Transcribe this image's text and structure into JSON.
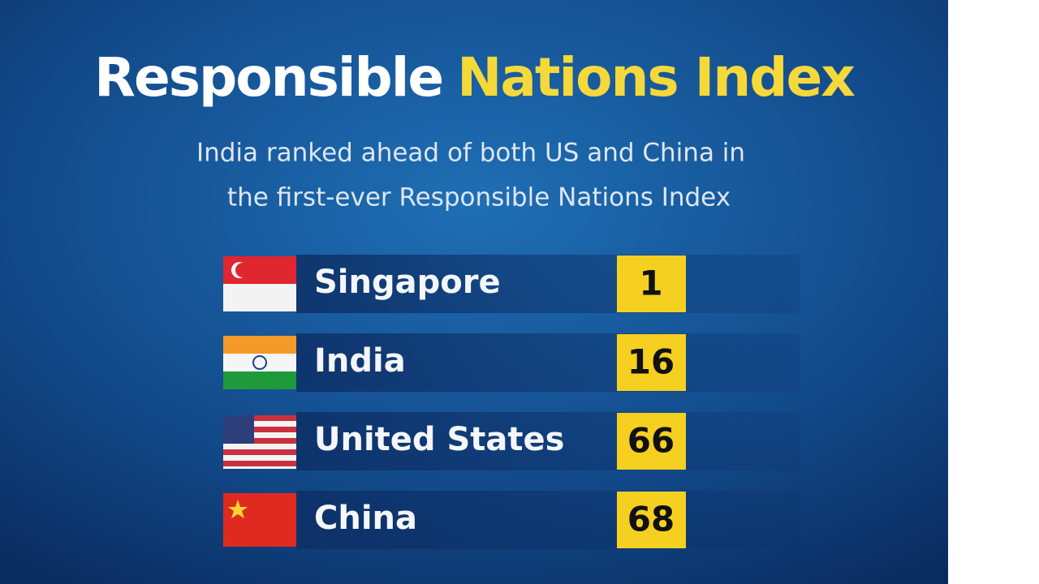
{
  "header": {
    "title_white": "Responsible",
    "title_yellow": "Nations Index",
    "subtitle": [
      "India ranked ahead of both US and China in",
      "the first-ever Responsible Nations Index"
    ]
  },
  "table": {
    "rows": [
      {
        "country": "Singapore",
        "rank": 1
      },
      {
        "country": "India",
        "rank": 16
      },
      {
        "country": "United States",
        "rank": 66
      },
      {
        "country": "China",
        "rank": 68
      }
    ]
  }
}
